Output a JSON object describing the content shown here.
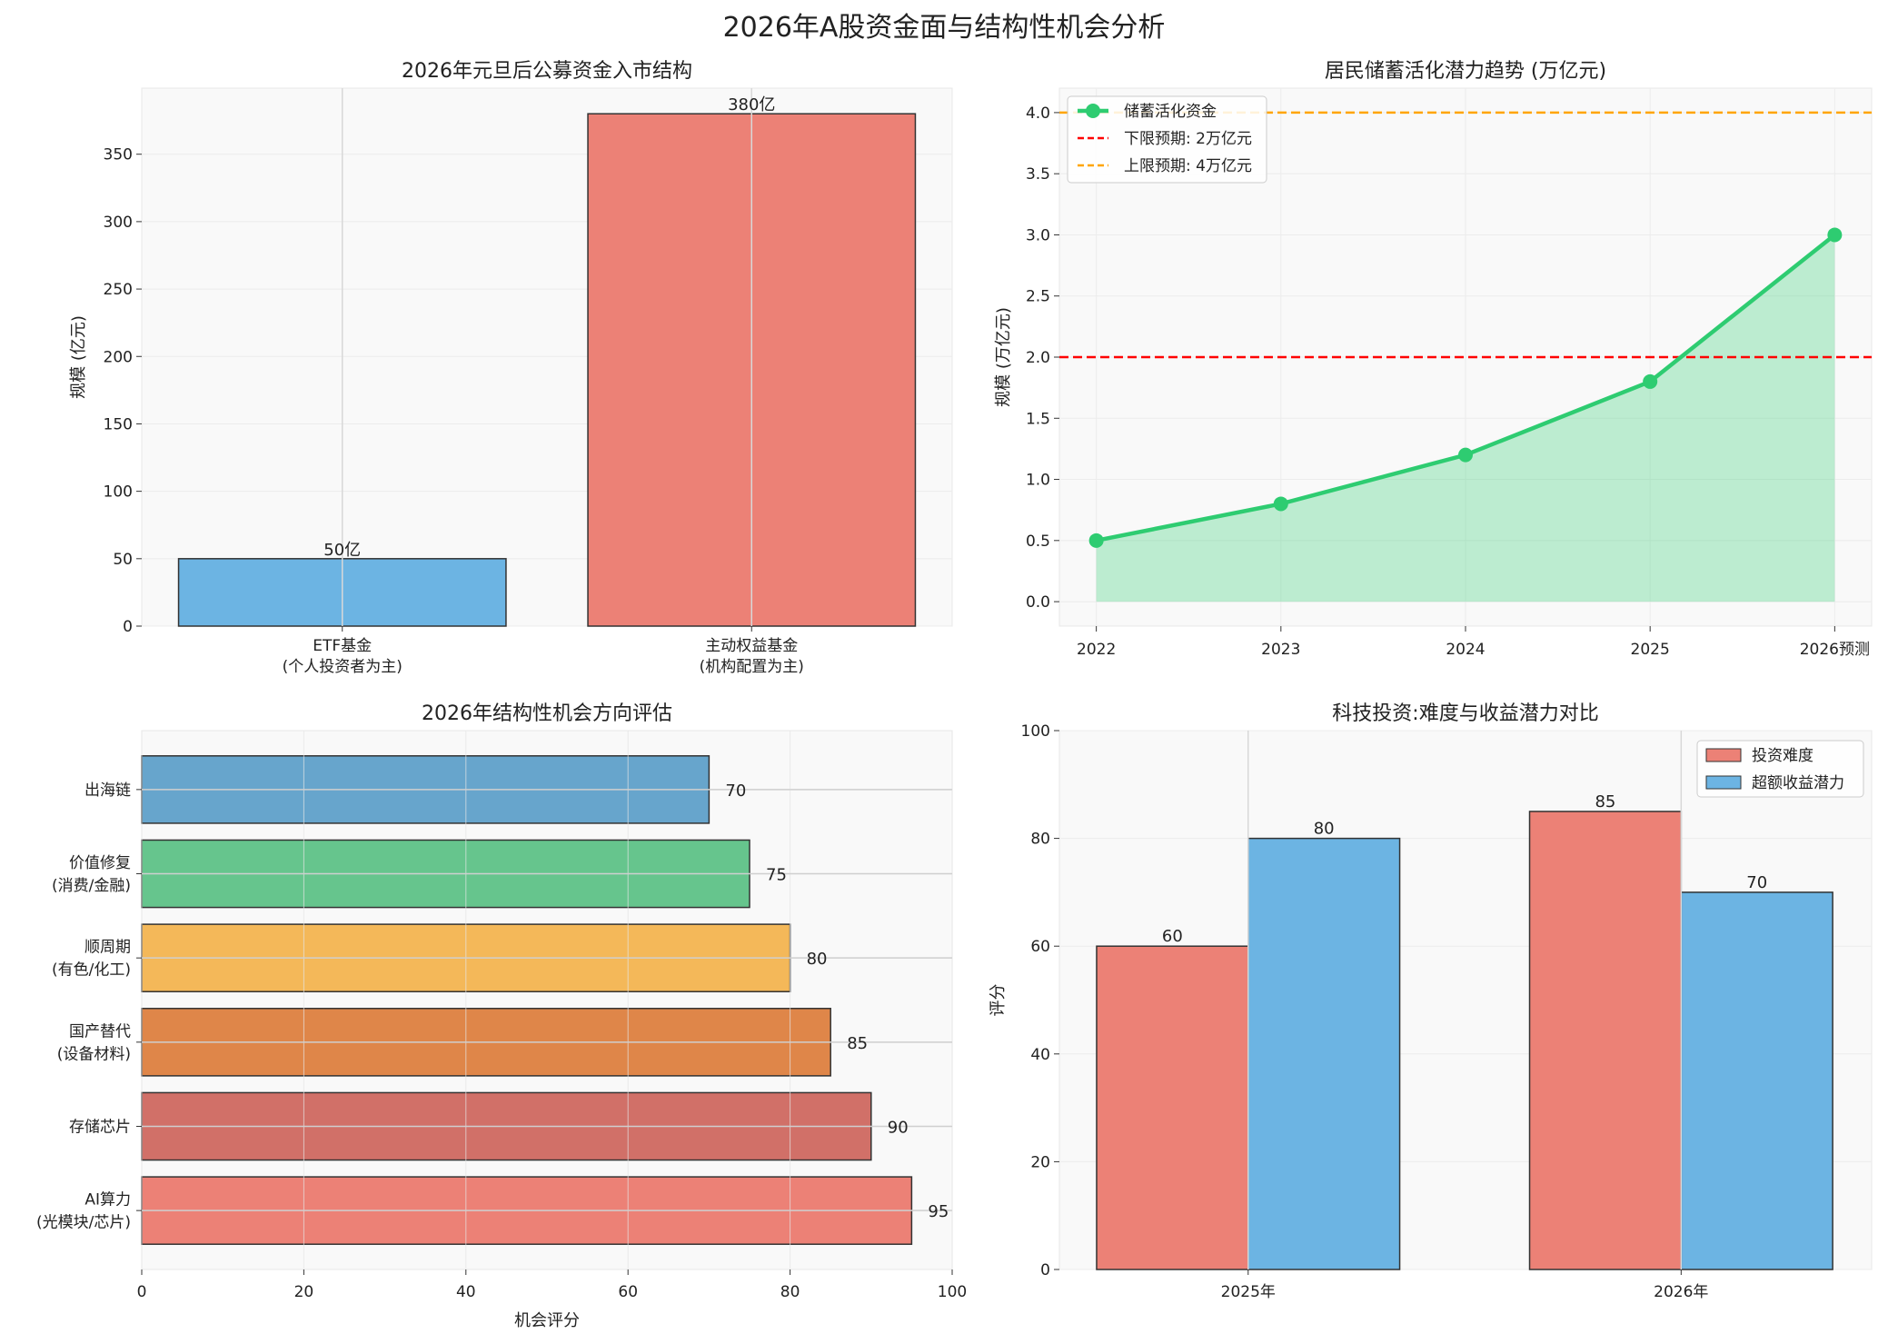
{
  "title": "2026年A股资金面与结构性机会分析",
  "chart_data": [
    {
      "type": "bar",
      "title": "2026年元旦后公募资金入市结构",
      "ylabel": "规模 (亿元)",
      "xlabel": "",
      "categories": [
        [
          "ETF基金",
          "(个人投资者为主)"
        ],
        [
          "主动权益基金",
          "(机构配置为主)"
        ]
      ],
      "values": [
        50,
        380
      ],
      "data_labels": [
        "50亿",
        "380亿"
      ],
      "colors": [
        "#6cb4e3",
        "#ec8176"
      ],
      "ylim": [
        0,
        399
      ],
      "yticks": [
        0,
        50,
        100,
        150,
        200,
        250,
        300,
        350
      ],
      "grid": true
    },
    {
      "type": "line",
      "title": "居民储蓄活化潜力趋势 (万亿元)",
      "ylabel": "规模 (万亿元)",
      "xlabel": "",
      "categories": [
        "2022",
        "2023",
        "2024",
        "2025",
        "2026预测"
      ],
      "series": [
        {
          "name": "储蓄活化资金",
          "values": [
            0.5,
            0.8,
            1.2,
            1.8,
            3.0
          ],
          "color": "#2ecc71",
          "fill": true
        }
      ],
      "reference_lines": [
        {
          "name": "下限预期: 2万亿元",
          "value": 2.0,
          "color": "#ff0000"
        },
        {
          "name": "上限预期: 4万亿元",
          "value": 4.0,
          "color": "#ffa500"
        }
      ],
      "ylim": [
        -0.2,
        4.2
      ],
      "yticks": [
        "0.0",
        "0.5",
        "1.0",
        "1.5",
        "2.0",
        "2.5",
        "3.0",
        "3.5",
        "4.0"
      ],
      "legend": "top-left",
      "grid": true
    },
    {
      "type": "bar",
      "orientation": "horizontal",
      "title": "2026年结构性机会方向评估",
      "xlabel": "机会评分",
      "ylabel": "",
      "categories": [
        [
          "AI算力",
          "(光模块/芯片)"
        ],
        [
          "存储芯片"
        ],
        [
          "国产替代",
          "(设备材料)"
        ],
        [
          "顺周期",
          "(有色/化工)"
        ],
        [
          "价值修复",
          "(消费/金融)"
        ],
        [
          "出海链"
        ]
      ],
      "values": [
        95,
        90,
        85,
        80,
        75,
        70
      ],
      "data_labels": [
        "95",
        "90",
        "85",
        "80",
        "75",
        "70"
      ],
      "colors": [
        "#ec8176",
        "#d17068",
        "#df8649",
        "#f4b859",
        "#66c58d",
        "#67a5cc"
      ],
      "xlim": [
        0,
        100
      ],
      "xticks": [
        0,
        20,
        40,
        60,
        80,
        100
      ],
      "grid": true
    },
    {
      "type": "bar",
      "title": "科技投资:难度与收益潜力对比",
      "ylabel": "评分",
      "xlabel": "",
      "categories": [
        "2025年",
        "2026年"
      ],
      "series": [
        {
          "name": "投资难度",
          "values": [
            60,
            85
          ],
          "color": "#ec8176"
        },
        {
          "name": "超额收益潜力",
          "values": [
            80,
            70
          ],
          "color": "#6cb4e3"
        }
      ],
      "data_labels": [
        [
          "60",
          "85"
        ],
        [
          "80",
          "70"
        ]
      ],
      "ylim": [
        0,
        100
      ],
      "yticks": [
        0,
        20,
        40,
        60,
        80,
        100
      ],
      "legend": "top-right",
      "grid": true
    }
  ]
}
